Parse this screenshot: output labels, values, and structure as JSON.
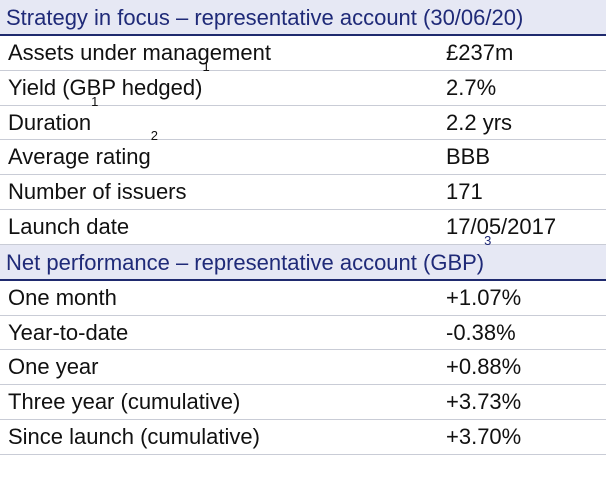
{
  "strategy": {
    "header": "Strategy in focus – representative account (30/06/20)",
    "rows": [
      {
        "label": "Assets under management",
        "sup": "",
        "value": "£237m"
      },
      {
        "label": "Yield (GBP hedged)",
        "sup": "1",
        "value": "2.7%"
      },
      {
        "label": "Duration",
        "sup": "1",
        "value": "2.2 yrs"
      },
      {
        "label": "Average rating",
        "sup": "2",
        "value": "BBB"
      },
      {
        "label": "Number of issuers",
        "sup": "",
        "value": "171"
      },
      {
        "label": "Launch date",
        "sup": "",
        "value": "17/05/2017"
      }
    ]
  },
  "performance": {
    "header": "Net performance – representative account (GBP)",
    "header_sup": "3",
    "rows": [
      {
        "label": "One month",
        "value": "+1.07%"
      },
      {
        "label": "Year-to-date",
        "value": "-0.38%"
      },
      {
        "label": "One year",
        "value": "+0.88%"
      },
      {
        "label": "Three year (cumulative)",
        "value": "+3.73%"
      },
      {
        "label": "Since launch (cumulative)",
        "value": "+3.70%"
      }
    ]
  }
}
